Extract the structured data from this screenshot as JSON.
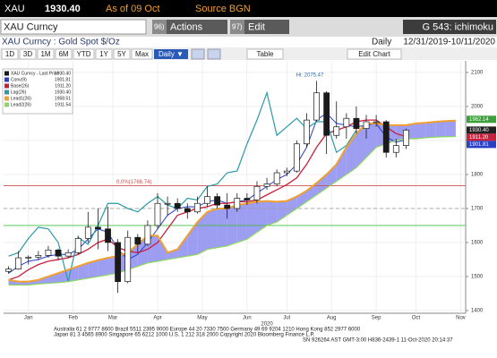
{
  "header": {
    "ticker": "XAU",
    "price": "1930.40",
    "as_of": "As of 09 Oct",
    "source": "Source BGN",
    "security": "XAU Curncy",
    "actions_num": "96)",
    "actions": "Actions",
    "edit_num": "97)",
    "edit": "Edit",
    "function": "G 543: ichimoku",
    "description": "XAU Curncy : Gold Spot  $/Oz",
    "frequency": "Daily",
    "date_range": "12/31/2019-10/11/2020"
  },
  "toolbar": {
    "ranges": [
      "1D",
      "3D",
      "1M",
      "6M",
      "YTD",
      "1Y",
      "5Y",
      "Max"
    ],
    "frequency": "Daily ▼",
    "table": "Table",
    "edit_chart": "Edit Chart"
  },
  "chart_data": {
    "type": "candlestick",
    "annotation": "Hi: 2075.47",
    "x": [
      0,
      1,
      2,
      3,
      4,
      5,
      6,
      7,
      8,
      9,
      10,
      11,
      12,
      13,
      14,
      15,
      16,
      17,
      18,
      19,
      20,
      21,
      22,
      23,
      24,
      25,
      26,
      27,
      28,
      29,
      30,
      31,
      32,
      33,
      34,
      35,
      36,
      37,
      38,
      39,
      40,
      41,
      42,
      43,
      44,
      45
    ],
    "xlim": [
      -0.5,
      46
    ],
    "xticks": [
      {
        "value": 2,
        "label": "Jan"
      },
      {
        "value": 6.5,
        "label": "Feb"
      },
      {
        "value": 10.5,
        "label": "Mar"
      },
      {
        "value": 15,
        "label": "Apr"
      },
      {
        "value": 19.5,
        "label": "May"
      },
      {
        "value": 24,
        "label": "Jun"
      },
      {
        "value": 28,
        "label": "Jul"
      },
      {
        "value": 32.5,
        "label": "Aug"
      },
      {
        "value": 37,
        "label": "Sep"
      },
      {
        "value": 41,
        "label": "Oct"
      },
      {
        "value": 45.5,
        "label": "Nov"
      }
    ],
    "x_year": "2020",
    "ylim": [
      1392,
      2134
    ],
    "yticks": [
      1400,
      1500,
      1600,
      1700,
      1800,
      1900,
      2000,
      2100
    ],
    "grid": true,
    "ohlc": {
      "name": "XAU Curncy - Last Price",
      "color": "#1a1a1a",
      "last": {
        "value": 1930.4,
        "label": "1930.40"
      },
      "open": [
        1515,
        1522,
        1555,
        1557,
        1562,
        1578,
        1560,
        1570,
        1612,
        1645,
        1640,
        1600,
        1485,
        1615,
        1595,
        1650,
        1715,
        1715,
        1700,
        1690,
        1715,
        1735,
        1710,
        1700,
        1730,
        1725,
        1765,
        1772,
        1805,
        1810,
        1890,
        1960,
        2040,
        1915,
        1940,
        1965,
        1935,
        1955,
        1955,
        1865,
        1885,
        null,
        null,
        null,
        null,
        null
      ],
      "high": [
        1530,
        1575,
        1562,
        1575,
        1590,
        1582,
        1580,
        1620,
        1690,
        1700,
        1705,
        1610,
        1635,
        1625,
        1665,
        1745,
        1735,
        1730,
        1715,
        1735,
        1765,
        1745,
        1745,
        1745,
        1745,
        1780,
        1790,
        1815,
        1820,
        1900,
        1980,
        2075,
        2045,
        2015,
        1980,
        2000,
        1975,
        1975,
        1960,
        1905,
        1935,
        null,
        null,
        null,
        null,
        null
      ],
      "low": [
        1508,
        1520,
        1535,
        1548,
        1555,
        1548,
        1555,
        1565,
        1600,
        1580,
        1575,
        1452,
        1480,
        1570,
        1590,
        1640,
        1680,
        1690,
        1670,
        1685,
        1705,
        1700,
        1670,
        1690,
        1710,
        1715,
        1755,
        1765,
        1795,
        1805,
        1880,
        1955,
        1860,
        1905,
        1905,
        1920,
        1905,
        1940,
        1850,
        1850,
        1875,
        null,
        null,
        null,
        null,
        null
      ],
      "close": [
        1522,
        1555,
        1557,
        1562,
        1578,
        1560,
        1570,
        1612,
        1645,
        1640,
        1600,
        1485,
        1615,
        1595,
        1650,
        1715,
        1715,
        1700,
        1690,
        1715,
        1735,
        1710,
        1700,
        1730,
        1725,
        1765,
        1772,
        1805,
        1810,
        1890,
        1960,
        2040,
        1915,
        1940,
        1965,
        1935,
        1955,
        1955,
        1865,
        1885,
        1930.4,
        null,
        null,
        null,
        null,
        null
      ]
    },
    "series": [
      {
        "name": "Conv(9)",
        "color": "#2840c8",
        "width": 1,
        "last": 1901.81,
        "values": [
          1510,
          1530,
          1545,
          1550,
          1560,
          1565,
          1565,
          1580,
          1610,
          1640,
          1630,
          1580,
          1550,
          1565,
          1600,
          1640,
          1680,
          1700,
          1705,
          1705,
          1720,
          1725,
          1715,
          1720,
          1725,
          1745,
          1765,
          1785,
          1800,
          1830,
          1880,
          1960,
          1980,
          1950,
          1945,
          1940,
          1945,
          1950,
          1910,
          1895,
          1901.81,
          null,
          null,
          null,
          null,
          null
        ]
      },
      {
        "name": "Base(26)",
        "color": "#c8203c",
        "width": 1.3,
        "last": {
          "value": 1911.2,
          "label": "1911.20"
        },
        "values": [
          1490,
          1500,
          1520,
          1535,
          1545,
          1550,
          1555,
          1565,
          1580,
          1600,
          1610,
          1585,
          1575,
          1570,
          1580,
          1600,
          1640,
          1680,
          1690,
          1700,
          1705,
          1715,
          1715,
          1720,
          1720,
          1725,
          1740,
          1755,
          1770,
          1790,
          1830,
          1880,
          1920,
          1930,
          1940,
          1955,
          1960,
          1960,
          1940,
          1920,
          1911.2,
          null,
          null,
          null,
          null,
          null
        ]
      },
      {
        "name": "Lag(26)",
        "color": "#2a9aa8",
        "width": 1.2,
        "last": {
          "value": 1930.4,
          "label": "1930.40"
        },
        "values": [
          1560,
          1570,
          1612,
          1645,
          1640,
          1600,
          1485,
          1615,
          1595,
          1650,
          1715,
          1715,
          1700,
          1690,
          1715,
          1735,
          1710,
          1700,
          1730,
          1725,
          1765,
          1772,
          1805,
          1810,
          1890,
          1960,
          2040,
          1915,
          1940,
          1965,
          1935,
          1955,
          1955,
          1865,
          1885,
          1930.4,
          null,
          null,
          null,
          null,
          null,
          null,
          null,
          null,
          null,
          null
        ]
      },
      {
        "name": "Lead1(26)",
        "color": "#f0a030",
        "width": 2,
        "last": 1958.51,
        "values": [
          1490,
          1485,
          1485,
          1490,
          1500,
          1510,
          1520,
          1530,
          1540,
          1548,
          1555,
          1560,
          1570,
          1595,
          1620,
          1620,
          1570,
          1580,
          1620,
          1660,
          1690,
          1700,
          1700,
          1710,
          1715,
          1720,
          1722,
          1720,
          1722,
          1735,
          1752,
          1775,
          1800,
          1830,
          1880,
          1920,
          1950,
          1950,
          1945,
          1945,
          1945,
          1950,
          1952,
          1955,
          1957,
          1958.51
        ]
      },
      {
        "name": "Lead2(26)",
        "color": "#8cd860",
        "width": 1.2,
        "last": 1911.54,
        "values": [
          1475,
          1475,
          1475,
          1478,
          1480,
          1482,
          1485,
          1490,
          1495,
          1500,
          1505,
          1510,
          1520,
          1530,
          1540,
          1545,
          1550,
          1555,
          1560,
          1565,
          1580,
          1585,
          1590,
          1600,
          1610,
          1630,
          1650,
          1660,
          1680,
          1700,
          1720,
          1740,
          1760,
          1780,
          1800,
          1820,
          1850,
          1880,
          1890,
          1900,
          1905,
          1905,
          1908,
          1910,
          1911,
          1911.54
        ]
      }
    ],
    "cloud_color": "#8c8cf0",
    "levels": [
      {
        "value": 1766.74,
        "label": "0.0%(1766.74)",
        "color": "#d05050",
        "dashed": false
      },
      {
        "value": 1700,
        "color": "#a0a0a0",
        "dashed": true
      },
      {
        "value": 1650,
        "color": "#40c040",
        "dashed": false
      }
    ],
    "price_tags": [
      {
        "value": 1962.14,
        "color": "#3aa03a"
      },
      {
        "value": 1930.4,
        "label": "1930.40",
        "color": "#202020"
      },
      {
        "value": 1911.2,
        "label": "1911.20",
        "color": "#c8203c"
      },
      {
        "value": 1901.81,
        "color": "#2840c8"
      }
    ]
  },
  "footer": {
    "line1": "Australia 61 2 9777 8600 Brazil 5511 2395 9000 Europe 44 20 7330 7500 Germany 49 69 9204 1210 Hong Kong 852 2977 6000",
    "line2": "Japan 81 3 4565 8900       Singapore 65 6212 1000       U.S. 1 212 318 2000       Copyright 2020 Bloomberg Finance L.P.",
    "line3": "SN 926264 AST  GMT-3:00 H836-2439-1 11-Oct-2020 20:14:37"
  }
}
